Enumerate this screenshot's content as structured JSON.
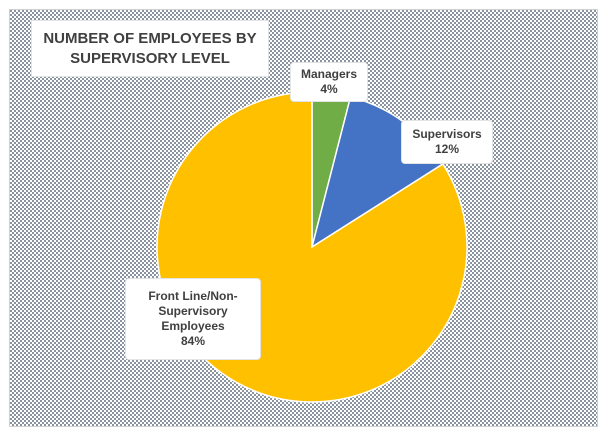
{
  "chart_data": {
    "type": "pie",
    "title_lines": [
      "NUMBER OF EMPLOYEES BY",
      "SUPERVISORY LEVEL"
    ],
    "slices": [
      {
        "label_lines": [
          "Managers"
        ],
        "value": 4,
        "value_label": "4%",
        "color": "#70ad47"
      },
      {
        "label_lines": [
          "Supervisors"
        ],
        "value": 12,
        "value_label": "12%",
        "color": "#4472c4"
      },
      {
        "label_lines": [
          "Front Line/Non-",
          "Supervisory",
          "Employees"
        ],
        "value": 84,
        "value_label": "84%",
        "color": "#ffc000"
      }
    ],
    "start_angle_deg": 0,
    "direction": "clockwise",
    "legend": "none"
  },
  "background_color": "#9da5b1"
}
